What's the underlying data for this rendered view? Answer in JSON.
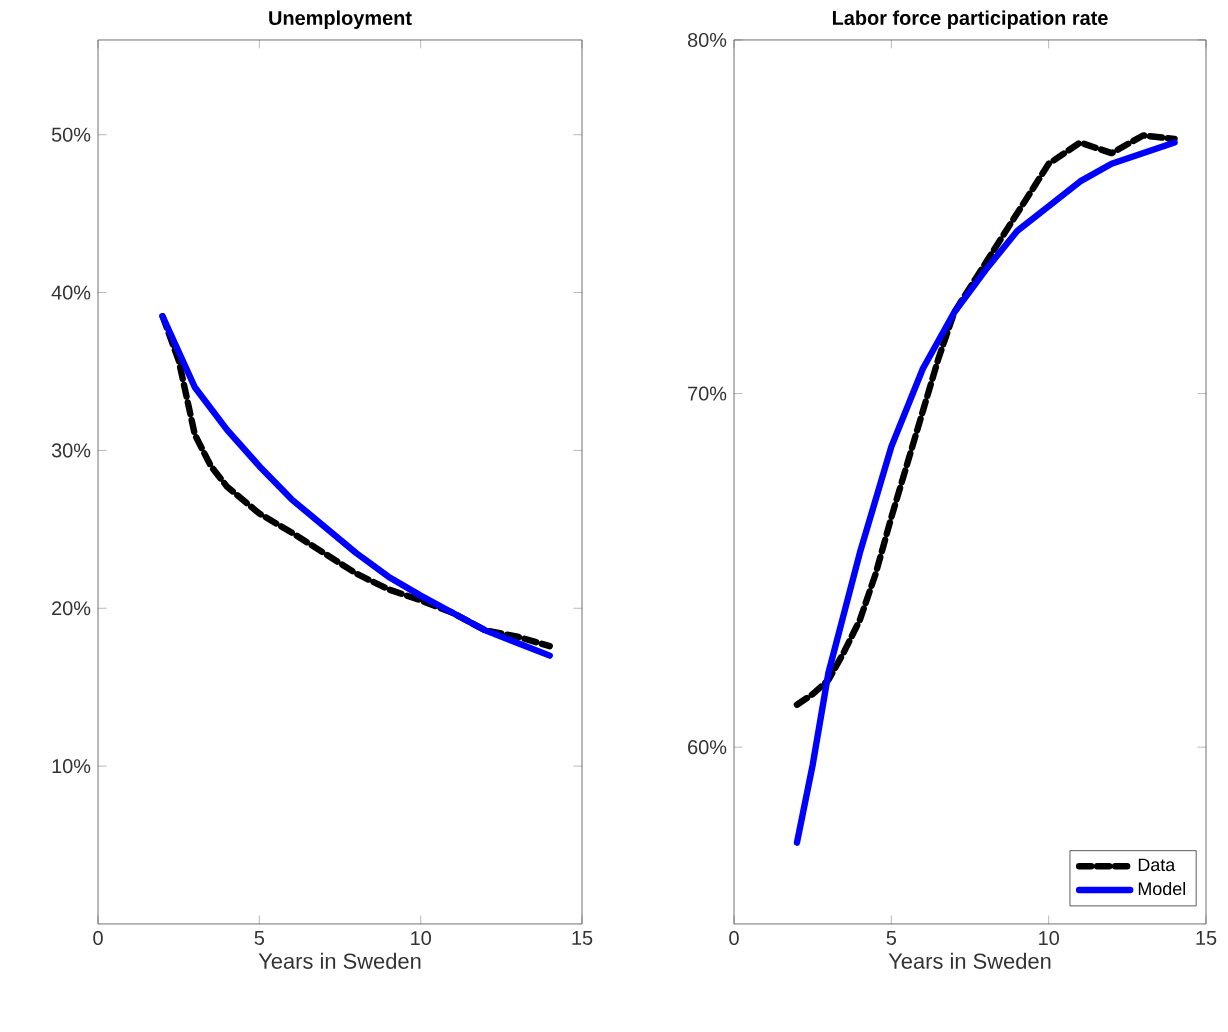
{
  "chart_data": [
    {
      "type": "line",
      "title": "Unemployment",
      "xlabel": "Years in Sweden",
      "xlim": [
        0,
        15
      ],
      "xticks": [
        0,
        5,
        10,
        15
      ],
      "ylim": [
        0,
        56
      ],
      "yticks": [
        {
          "value": 10,
          "label": "10%"
        },
        {
          "value": 20,
          "label": "20%"
        },
        {
          "value": 30,
          "label": "30%"
        },
        {
          "value": 40,
          "label": "40%"
        },
        {
          "value": 50,
          "label": "50%"
        }
      ],
      "series": [
        {
          "color": "#000000",
          "line_style": "dashed",
          "x": [
            2,
            2.5,
            3,
            3.5,
            4,
            5,
            6,
            7,
            8,
            9,
            10,
            11,
            12,
            13,
            14
          ],
          "values": [
            38.5,
            35.7,
            31.0,
            29.0,
            27.7,
            26.0,
            24.8,
            23.5,
            22.2,
            21.2,
            20.5,
            19.7,
            18.6,
            18.2,
            17.6
          ]
        },
        {
          "color": "#0000ff",
          "line_style": "solid",
          "x": [
            2,
            3,
            4,
            5,
            6,
            7,
            8,
            9,
            10,
            11,
            12,
            13,
            14
          ],
          "values": [
            38.5,
            34.0,
            31.3,
            29.0,
            26.9,
            25.2,
            23.5,
            22.0,
            20.8,
            19.7,
            18.6,
            17.8,
            17.0
          ]
        }
      ]
    },
    {
      "type": "line",
      "title": "Labor force participation rate",
      "xlabel": "Years in Sweden",
      "xlim": [
        0,
        15
      ],
      "xticks": [
        0,
        5,
        10,
        15
      ],
      "ylim": [
        55,
        80
      ],
      "yticks": [
        {
          "value": 60,
          "label": "60%"
        },
        {
          "value": 70,
          "label": "70%"
        },
        {
          "value": 80,
          "label": "80%"
        }
      ],
      "legend": "bottom right",
      "series": [
        {
          "name": "Data",
          "color": "#000000",
          "line_style": "dashed",
          "x": [
            2,
            2.5,
            3,
            3.5,
            4,
            4.5,
            5,
            5.5,
            6,
            6.5,
            7,
            8,
            9,
            10,
            11,
            12,
            13,
            14
          ],
          "values": [
            61.2,
            61.5,
            61.9,
            62.7,
            63.6,
            64.9,
            66.5,
            68.0,
            69.5,
            71.0,
            72.3,
            73.7,
            75.1,
            76.5,
            77.1,
            76.8,
            77.3,
            77.2
          ]
        },
        {
          "name": "Model",
          "color": "#0000ff",
          "line_style": "solid",
          "x": [
            2,
            2.5,
            3,
            3.5,
            4,
            5,
            6,
            7,
            8,
            9,
            10,
            11,
            12,
            13,
            14
          ],
          "values": [
            57.3,
            59.5,
            62.1,
            63.8,
            65.5,
            68.5,
            70.7,
            72.3,
            73.5,
            74.6,
            75.3,
            76.0,
            76.5,
            76.8,
            77.1
          ]
        }
      ]
    }
  ]
}
